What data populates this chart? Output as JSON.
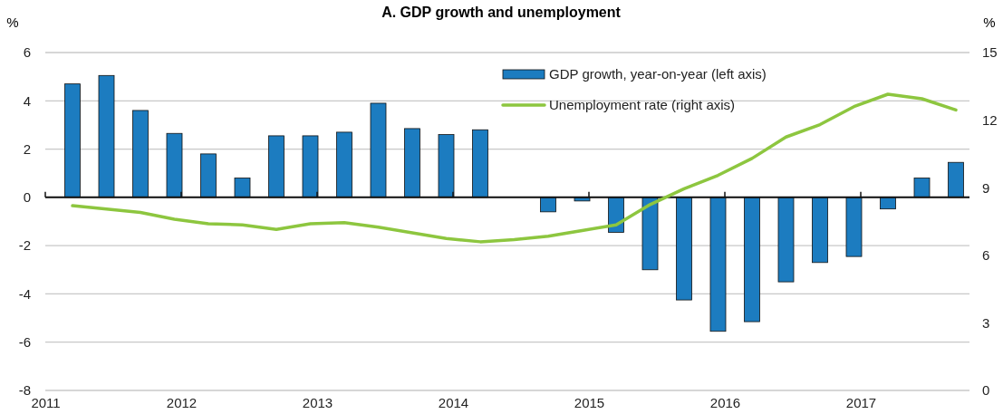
{
  "chart_data": {
    "type": "bar",
    "title": "A. GDP growth and unemployment",
    "ylabel": "%",
    "y2label": "%",
    "x": [
      2011.2,
      2011.45,
      2011.7,
      2011.95,
      2012.2,
      2012.45,
      2012.7,
      2012.95,
      2013.2,
      2013.45,
      2013.7,
      2013.95,
      2014.2,
      2014.45,
      2014.7,
      2014.95,
      2015.2,
      2015.45,
      2015.7,
      2015.95,
      2016.2,
      2016.45,
      2016.7,
      2016.95,
      2017.2,
      2017.45,
      2017.7
    ],
    "xlim": [
      2011,
      2017.8
    ],
    "xticks": [
      2011,
      2012,
      2013,
      2014,
      2015,
      2016,
      2017
    ],
    "ylim": [
      -8,
      6
    ],
    "yticks": [
      -8,
      -6,
      -4,
      -2,
      0,
      2,
      4,
      6
    ],
    "y2lim": [
      0,
      15
    ],
    "y2ticks": [
      0,
      3,
      6,
      9,
      12,
      15
    ],
    "grid": "y",
    "legend": "top right",
    "series": [
      {
        "name": "GDP growth, year-on-year (left axis)",
        "color": "#1c7cc0",
        "values": [
          4.7,
          5.05,
          3.6,
          2.65,
          1.8,
          0.8,
          2.55,
          2.55,
          2.7,
          3.9,
          2.85,
          2.6,
          2.8,
          0,
          -0.6,
          -0.15,
          -1.45,
          -3.0,
          -4.25,
          -5.55,
          -5.15,
          -3.5,
          -2.7,
          -2.45,
          -0.48,
          0.8,
          1.45
        ]
      },
      {
        "name": "Unemployment rate (right axis)",
        "type": "line",
        "axis": "y2",
        "color": "#8dc63f",
        "values": [
          8.2,
          8.05,
          7.9,
          7.6,
          7.4,
          7.35,
          7.15,
          7.4,
          7.45,
          7.25,
          7.0,
          6.75,
          6.6,
          6.7,
          6.85,
          7.1,
          7.35,
          8.25,
          8.95,
          9.55,
          10.3,
          11.25,
          11.8,
          12.6,
          13.15,
          12.95,
          12.45
        ]
      }
    ]
  }
}
